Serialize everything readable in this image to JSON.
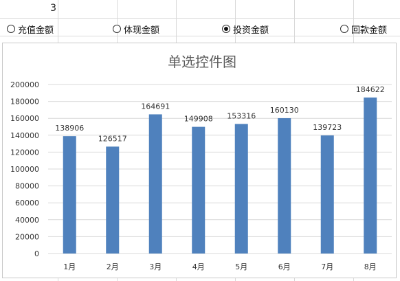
{
  "spreadsheet": {
    "cell_value": "3"
  },
  "radio_group": {
    "options": [
      {
        "label": "充值金额",
        "selected": false
      },
      {
        "label": "体现金额",
        "selected": false
      },
      {
        "label": "投资金额",
        "selected": true
      },
      {
        "label": "回款金额",
        "selected": false
      }
    ]
  },
  "chart_data": {
    "type": "bar",
    "title": "单选控件图",
    "categories": [
      "1月",
      "2月",
      "3月",
      "4月",
      "5月",
      "6月",
      "7月",
      "8月"
    ],
    "values": [
      138906,
      126517,
      164691,
      149908,
      153316,
      160130,
      139723,
      184622
    ],
    "ylim": [
      0,
      200000
    ],
    "yticks": [
      0,
      20000,
      40000,
      60000,
      80000,
      100000,
      120000,
      140000,
      160000,
      180000,
      200000
    ],
    "grid": true,
    "legend": "none",
    "bar_color": "#4F81BD",
    "data_labels": true
  }
}
